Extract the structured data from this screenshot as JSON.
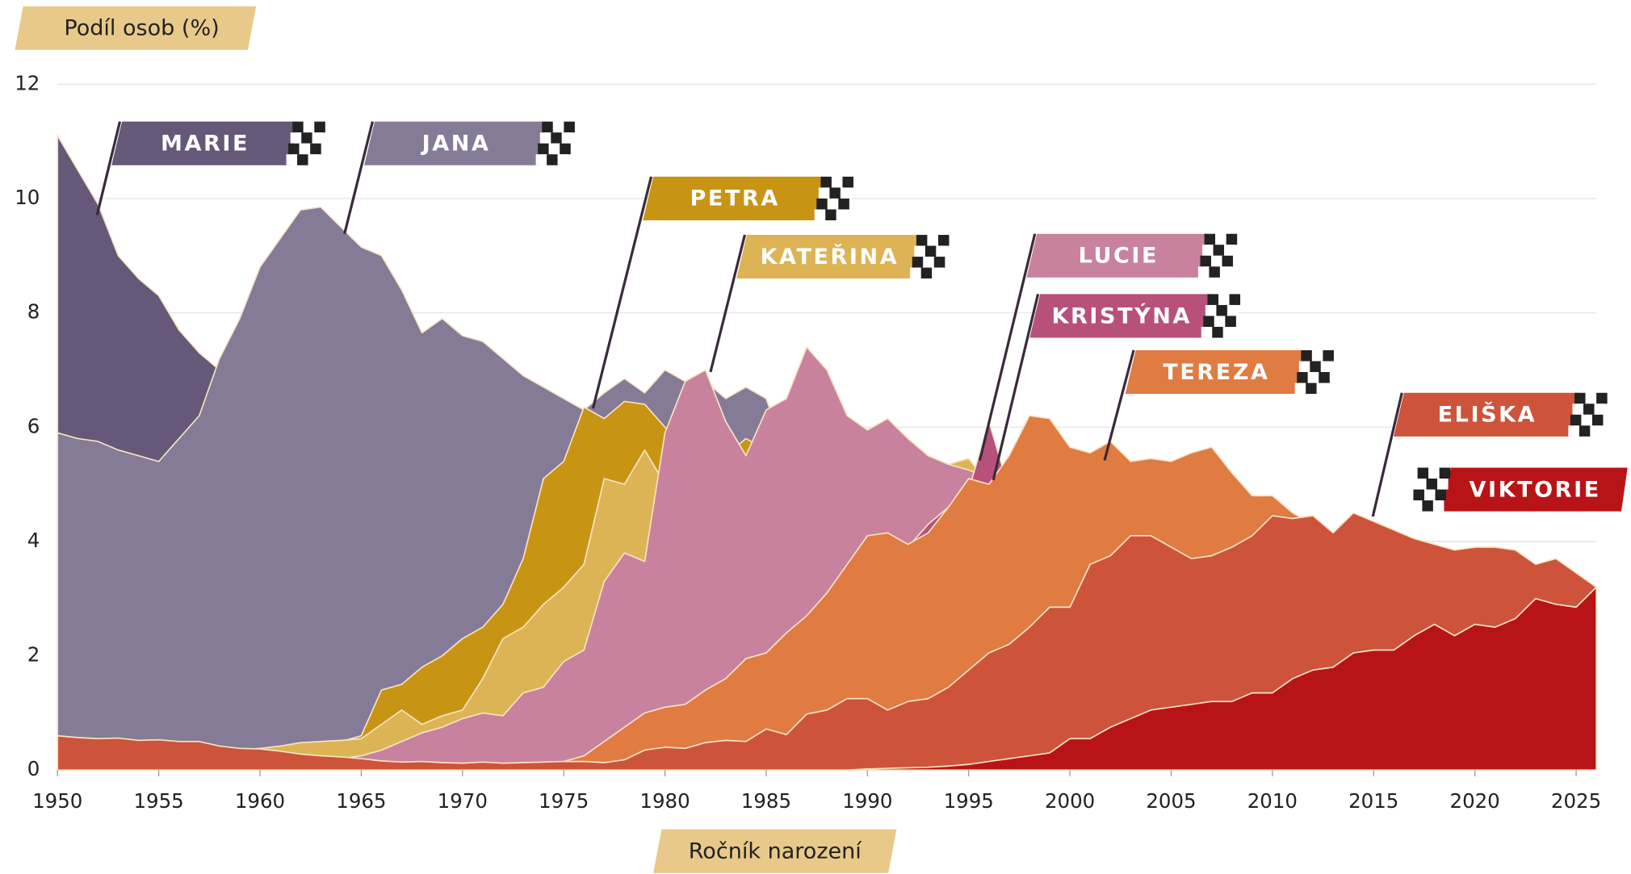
{
  "chart_data": {
    "type": "area",
    "title": "Podíl osob (%)",
    "x_label": "Ročník narození",
    "x": [
      1950,
      1951,
      1952,
      1953,
      1954,
      1955,
      1956,
      1957,
      1958,
      1959,
      1960,
      1961,
      1962,
      1963,
      1964,
      1965,
      1966,
      1967,
      1968,
      1969,
      1970,
      1971,
      1972,
      1973,
      1974,
      1975,
      1976,
      1977,
      1978,
      1979,
      1980,
      1981,
      1982,
      1983,
      1984,
      1985,
      1986,
      1987,
      1988,
      1989,
      1990,
      1991,
      1992,
      1993,
      1994,
      1995,
      1996,
      1997,
      1998,
      1999,
      2000,
      2001,
      2002,
      2003,
      2004,
      2005,
      2006,
      2007,
      2008,
      2009,
      2010,
      2011,
      2012,
      2013,
      2014,
      2015,
      2016,
      2017,
      2018,
      2019,
      2020,
      2021,
      2022,
      2023,
      2024,
      2025,
      2026
    ],
    "xlim": [
      1950,
      2026
    ],
    "xticks": [
      1950,
      1955,
      1960,
      1965,
      1970,
      1975,
      1980,
      1985,
      1990,
      1995,
      2000,
      2005,
      2010,
      2015,
      2020,
      2025
    ],
    "ylim": [
      0,
      12
    ],
    "yticks": [
      0,
      2,
      4,
      6,
      8,
      10,
      12
    ],
    "grid": true,
    "series": [
      {
        "name": "MARIE",
        "color": "#665878",
        "values": [
          11.1,
          10.5,
          9.9,
          9.0,
          8.6,
          8.3,
          7.7,
          7.3,
          7.0,
          6.9,
          null,
          null,
          null,
          null,
          null,
          null,
          null,
          null,
          null,
          null,
          null,
          null,
          null,
          null,
          null,
          null,
          null,
          null,
          null,
          null,
          null,
          null,
          null,
          null,
          null,
          null,
          null,
          null,
          null,
          null,
          null,
          null,
          null,
          null,
          null,
          null,
          null,
          null,
          null,
          null,
          null,
          null,
          null,
          null,
          null,
          null,
          null,
          null,
          null,
          null,
          null,
          null,
          null,
          null,
          null,
          null,
          null,
          null,
          null,
          null,
          null,
          null,
          null,
          null,
          null,
          null,
          null
        ]
      },
      {
        "name": "JANA",
        "color": "#857b96",
        "values": [
          5.9,
          5.8,
          5.75,
          5.6,
          5.5,
          5.4,
          5.8,
          6.2,
          7.2,
          7.9,
          8.8,
          9.3,
          9.8,
          9.85,
          9.5,
          9.15,
          9.0,
          8.4,
          7.65,
          7.9,
          7.6,
          7.5,
          7.2,
          6.9,
          6.7,
          6.5,
          6.3,
          6.6,
          6.85,
          6.6,
          7.0,
          6.8,
          6.8,
          6.5,
          6.7,
          6.5,
          5.5,
          null,
          null,
          null,
          null,
          null,
          null,
          null,
          null,
          null,
          null,
          null,
          null,
          null,
          null,
          null,
          null,
          null,
          null,
          null,
          null,
          null,
          null,
          null,
          null,
          null,
          null,
          null,
          null,
          null,
          null,
          null,
          null,
          null,
          null,
          null,
          null,
          null,
          null,
          null,
          null
        ]
      },
      {
        "name": "PETRA",
        "color": "#c89414",
        "values": [
          null,
          null,
          null,
          null,
          null,
          null,
          null,
          null,
          null,
          null,
          null,
          null,
          null,
          null,
          0.5,
          0.6,
          1.4,
          1.5,
          1.8,
          2.0,
          2.3,
          2.5,
          2.9,
          3.7,
          5.1,
          5.4,
          6.35,
          6.15,
          6.45,
          6.4,
          6.0,
          5.6,
          5.5,
          5.5,
          5.8,
          5.6,
          5.0,
          null,
          null,
          null,
          null,
          null,
          null,
          null,
          null,
          null,
          null,
          null,
          null,
          null,
          null,
          null,
          null,
          null,
          null,
          null,
          null,
          null,
          null,
          null,
          null,
          null,
          null,
          null,
          null,
          null,
          null,
          null,
          null,
          null,
          null,
          null,
          null,
          null,
          null,
          null,
          null
        ]
      },
      {
        "name": "KATEŘINA",
        "color": "#ddb455",
        "values": [
          null,
          null,
          null,
          null,
          null,
          null,
          null,
          null,
          0.3,
          0.35,
          0.38,
          0.42,
          0.48,
          0.5,
          0.52,
          0.55,
          0.8,
          1.05,
          0.8,
          0.95,
          1.05,
          1.6,
          2.3,
          2.5,
          2.9,
          3.2,
          3.6,
          5.1,
          5.0,
          5.6,
          5.0,
          5.3,
          5.3,
          5.3,
          5.3,
          5.3,
          5.3,
          5.3,
          5.3,
          5.3,
          5.3,
          5.3,
          5.3,
          5.3,
          5.35,
          5.45,
          5.0,
          4.4,
          null,
          null,
          null,
          null,
          null,
          null,
          null,
          null,
          null,
          null,
          null,
          null,
          null,
          null,
          null,
          null,
          null,
          null,
          null,
          null,
          null,
          null,
          null,
          null,
          null,
          null,
          null,
          null,
          null
        ]
      },
      {
        "name": "LUCIE",
        "color": "#c9829d",
        "values": [
          null,
          null,
          null,
          null,
          null,
          null,
          null,
          null,
          null,
          null,
          null,
          null,
          null,
          null,
          0.2,
          0.25,
          0.35,
          0.5,
          0.65,
          0.75,
          0.9,
          1.0,
          0.95,
          1.35,
          1.45,
          1.9,
          2.1,
          3.3,
          3.8,
          3.65,
          5.9,
          6.8,
          7.0,
          6.1,
          5.5,
          6.3,
          6.5,
          7.4,
          7.0,
          6.2,
          5.95,
          6.15,
          5.8,
          5.5,
          5.35,
          5.25,
          5.1,
          4.8,
          4.5,
          null,
          null,
          null,
          null,
          null,
          null,
          null,
          null,
          null,
          null,
          null,
          null,
          null,
          null,
          null,
          null,
          null,
          null,
          null,
          null,
          null,
          null,
          null,
          null,
          null,
          null,
          null,
          null
        ]
      },
      {
        "name": "KRISTÝNA",
        "color": "#b8507c",
        "values": [
          null,
          null,
          null,
          null,
          null,
          null,
          null,
          null,
          null,
          null,
          null,
          null,
          null,
          null,
          null,
          null,
          null,
          null,
          null,
          null,
          null,
          null,
          null,
          null,
          null,
          null,
          null,
          null,
          null,
          null,
          null,
          null,
          null,
          null,
          null,
          null,
          null,
          null,
          null,
          null,
          3.0,
          3.5,
          3.9,
          4.3,
          4.6,
          4.9,
          6.1,
          4.9,
          null,
          null,
          null,
          null,
          null,
          null,
          null,
          null,
          null,
          null,
          null,
          null,
          null,
          null,
          null,
          null,
          null,
          null,
          null,
          null,
          null,
          null,
          null,
          null,
          null,
          null,
          null,
          null,
          null
        ]
      },
      {
        "name": "TEREZA",
        "color": "#e07b42",
        "values": [
          null,
          null,
          null,
          null,
          null,
          null,
          null,
          null,
          null,
          null,
          null,
          null,
          null,
          null,
          null,
          null,
          null,
          null,
          null,
          null,
          null,
          null,
          null,
          null,
          0.05,
          0.15,
          0.25,
          0.5,
          0.75,
          1.0,
          1.1,
          1.15,
          1.4,
          1.6,
          1.95,
          2.05,
          2.4,
          2.7,
          3.1,
          3.6,
          4.1,
          4.15,
          3.95,
          4.15,
          4.6,
          5.1,
          5.0,
          5.5,
          6.2,
          6.15,
          5.65,
          5.55,
          5.75,
          5.4,
          5.45,
          5.4,
          5.55,
          5.65,
          5.2,
          4.8,
          4.8,
          4.5,
          4.3,
          4.1,
          null,
          null,
          null,
          null,
          null,
          null,
          null,
          null,
          null,
          null,
          null,
          null,
          null
        ]
      },
      {
        "name": "ELIŠKA",
        "color": "#cd543a",
        "values": [
          0.6,
          0.57,
          0.55,
          0.56,
          0.52,
          0.53,
          0.5,
          0.5,
          0.42,
          0.38,
          0.37,
          0.33,
          0.28,
          0.25,
          0.23,
          0.2,
          0.16,
          0.14,
          0.15,
          0.13,
          0.12,
          0.14,
          0.12,
          0.13,
          0.14,
          0.15,
          0.15,
          0.13,
          0.18,
          0.35,
          0.4,
          0.38,
          0.48,
          0.52,
          0.5,
          0.72,
          0.62,
          0.98,
          1.05,
          1.25,
          1.25,
          1.05,
          1.2,
          1.25,
          1.45,
          1.75,
          2.05,
          2.2,
          2.5,
          2.85,
          2.85,
          3.6,
          3.75,
          4.1,
          4.1,
          3.9,
          3.7,
          3.75,
          3.9,
          4.1,
          4.45,
          4.4,
          4.45,
          4.15,
          4.5,
          4.35,
          4.2,
          4.05,
          3.95,
          3.85,
          3.9,
          3.9,
          3.85,
          3.6,
          3.7,
          3.45,
          3.2
        ]
      },
      {
        "name": "VIKTORIE",
        "color": "#b81417",
        "values": [
          null,
          null,
          null,
          null,
          null,
          null,
          null,
          null,
          null,
          null,
          null,
          null,
          null,
          null,
          null,
          null,
          null,
          null,
          null,
          null,
          null,
          null,
          null,
          null,
          null,
          null,
          null,
          null,
          null,
          null,
          null,
          null,
          null,
          null,
          null,
          null,
          null,
          null,
          null,
          0,
          0.02,
          0.03,
          0.04,
          0.05,
          0.07,
          0.1,
          0.15,
          0.2,
          0.25,
          0.3,
          0.55,
          0.55,
          0.75,
          0.9,
          1.05,
          1.1,
          1.15,
          1.2,
          1.2,
          1.35,
          1.35,
          1.6,
          1.75,
          1.8,
          2.05,
          2.1,
          2.1,
          2.35,
          2.55,
          2.35,
          2.55,
          2.5,
          2.65,
          3.0,
          2.9,
          2.85,
          3.2
        ]
      }
    ]
  }
}
